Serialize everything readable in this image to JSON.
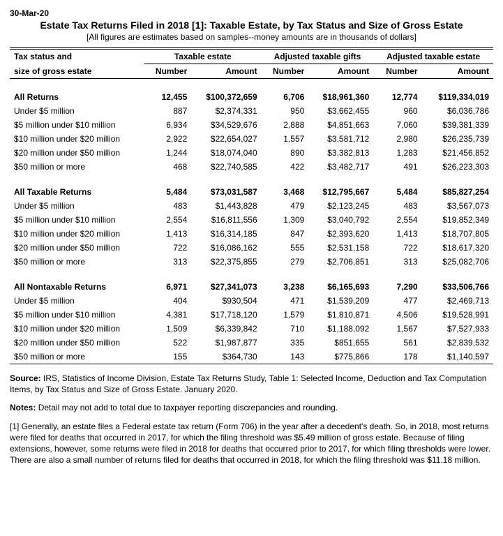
{
  "date": "30-Mar-20",
  "title": "Estate Tax Returns Filed in 2018 [1]: Taxable Estate, by Tax Status and Size of Gross Estate",
  "subtitle": "[All figures are estimates based on samples--money amounts are in thousands of dollars]",
  "header": {
    "row_label_1": "Tax status and",
    "row_label_2": "size of gross estate",
    "group1": "Taxable estate",
    "group2": "Adjusted taxable gifts",
    "group3": "Adjusted taxable estate",
    "sub_number": "Number",
    "sub_amount": "Amount"
  },
  "sections": [
    {
      "total": {
        "label": "All Returns",
        "c": [
          "12,455",
          "$100,372,659",
          "6,706",
          "$18,961,360",
          "12,774",
          "$119,334,019"
        ]
      },
      "rows": [
        {
          "label": "Under $5 million",
          "c": [
            "887",
            "$2,374,331",
            "950",
            "$3,662,455",
            "960",
            "$6,036,786"
          ]
        },
        {
          "label": "$5 million under $10 million",
          "c": [
            "6,934",
            "$34,529,676",
            "2,888",
            "$4,851,663",
            "7,060",
            "$39,381,339"
          ]
        },
        {
          "label": "$10 million under $20 million",
          "c": [
            "2,922",
            "$22,654,027",
            "1,557",
            "$3,581,712",
            "2,980",
            "$26,235,739"
          ]
        },
        {
          "label": "$20 million under $50 million",
          "c": [
            "1,244",
            "$18,074,040",
            "890",
            "$3,382,813",
            "1,283",
            "$21,456,852"
          ]
        },
        {
          "label": "$50 million or more",
          "c": [
            "468",
            "$22,740,585",
            "422",
            "$3,482,717",
            "491",
            "$26,223,303"
          ]
        }
      ]
    },
    {
      "total": {
        "label": "All Taxable Returns",
        "c": [
          "5,484",
          "$73,031,587",
          "3,468",
          "$12,795,667",
          "5,484",
          "$85,827,254"
        ]
      },
      "rows": [
        {
          "label": "Under $5 million",
          "c": [
            "483",
            "$1,443,828",
            "479",
            "$2,123,245",
            "483",
            "$3,567,073"
          ]
        },
        {
          "label": "$5 million under $10 million",
          "c": [
            "2,554",
            "$16,811,556",
            "1,309",
            "$3,040,792",
            "2,554",
            "$19,852,349"
          ]
        },
        {
          "label": "$10 million under $20 million",
          "c": [
            "1,413",
            "$16,314,185",
            "847",
            "$2,393,620",
            "1,413",
            "$18,707,805"
          ]
        },
        {
          "label": "$20 million under $50 million",
          "c": [
            "722",
            "$16,086,162",
            "555",
            "$2,531,158",
            "722",
            "$18,617,320"
          ]
        },
        {
          "label": "$50 million or more",
          "c": [
            "313",
            "$22,375,855",
            "279",
            "$2,706,851",
            "313",
            "$25,082,706"
          ]
        }
      ]
    },
    {
      "total": {
        "label": "All Nontaxable Returns",
        "c": [
          "6,971",
          "$27,341,073",
          "3,238",
          "$6,165,693",
          "7,290",
          "$33,506,766"
        ]
      },
      "rows": [
        {
          "label": "Under $5 million",
          "c": [
            "404",
            "$930,504",
            "471",
            "$1,539,209",
            "477",
            "$2,469,713"
          ]
        },
        {
          "label": "$5 million under $10 million",
          "c": [
            "4,381",
            "$17,718,120",
            "1,579",
            "$1,810,871",
            "4,506",
            "$19,528,991"
          ]
        },
        {
          "label": "$10 million under $20 million",
          "c": [
            "1,509",
            "$6,339,842",
            "710",
            "$1,188,092",
            "1,567",
            "$7,527,933"
          ]
        },
        {
          "label": "$20 million under $50 million",
          "c": [
            "522",
            "$1,987,877",
            "335",
            "$851,655",
            "561",
            "$2,839,532"
          ]
        },
        {
          "label": "$50 million or more",
          "c": [
            "155",
            "$364,730",
            "143",
            "$775,866",
            "178",
            "$1,140,597"
          ]
        }
      ]
    }
  ],
  "footer": {
    "source_label": "Source:",
    "source_text": "IRS, Statistics of Income Division, Estate Tax Returns Study, Table 1: Selected Income, Deduction and Tax Computation Items, by Tax Status and Size of Gross Estate. January 2020.",
    "notes_label": "Notes:",
    "notes_text": "Detail may not add to total due to taxpayer reporting discrepancies and rounding.",
    "footnote": "[1] Generally, an estate files a Federal estate tax return (Form 706) in the year after a decedent's death. So, in 2018, most returns were filed for deaths that occurred in 2017, for which the filing threshold was $5.49 million of gross estate. Because of filing extensions, however, some returns were filed in 2018 for deaths that occurred prior to 2017, for which filing thresholds were lower. There are also a small number of returns filed for deaths that occurred in 2018, for which the filing threshold was $11.18 million."
  }
}
